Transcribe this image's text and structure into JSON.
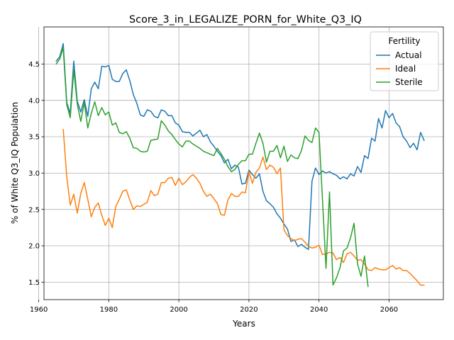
{
  "chart_data": {
    "type": "line",
    "title": "Score_3_in_LEGALIZE_PORN_for_White_Q3_IQ",
    "xlabel": "Years",
    "ylabel": "% of White Q3_IQ Population",
    "xlim": [
      1961.5,
      2075.5
    ],
    "ylim": [
      1.26,
      5.01
    ],
    "xticks": [
      1960,
      1980,
      2000,
      2020,
      2040,
      2060
    ],
    "yticks": [
      1.5,
      2.0,
      2.5,
      3.0,
      3.5,
      4.0,
      4.5
    ],
    "xtick_labels": [
      "1960",
      "1980",
      "2000",
      "2020",
      "2040",
      "2060"
    ],
    "ytick_labels": [
      "1.5",
      "2.0",
      "2.5",
      "3.0",
      "3.5",
      "4.0",
      "4.5"
    ],
    "grid": true,
    "legend": {
      "title": "Fertility",
      "position": "top-right"
    },
    "series": [
      {
        "name": "Actual",
        "color": "#1f77b4",
        "x": [
          1965,
          1966,
          1967,
          1968,
          1969,
          1970,
          1971,
          1972,
          1973,
          1974,
          1975,
          1976,
          1977,
          1978,
          1979,
          1980,
          1981,
          1982,
          1983,
          1984,
          1985,
          1986,
          1987,
          1988,
          1989,
          1990,
          1991,
          1992,
          1993,
          1994,
          1995,
          1996,
          1997,
          1998,
          1999,
          2000,
          2001,
          2002,
          2003,
          2004,
          2005,
          2006,
          2007,
          2008,
          2009,
          2010,
          2011,
          2012,
          2013,
          2014,
          2015,
          2016,
          2017,
          2018,
          2019,
          2020,
          2021,
          2022,
          2023,
          2024,
          2025,
          2026,
          2027,
          2028,
          2029,
          2030,
          2031,
          2032,
          2033,
          2034,
          2035,
          2036,
          2037,
          2038,
          2039,
          2040,
          2041,
          2042,
          2043,
          2044,
          2045,
          2046,
          2047,
          2048,
          2049,
          2050,
          2051,
          2052,
          2053,
          2054,
          2055,
          2056,
          2057,
          2058,
          2059,
          2060,
          2061,
          2062,
          2063,
          2064,
          2065,
          2066,
          2067,
          2068,
          2069,
          2070
        ],
        "values": [
          4.54,
          4.6,
          4.78,
          3.97,
          3.82,
          4.54,
          3.99,
          3.84,
          4.01,
          3.78,
          4.16,
          4.25,
          4.16,
          4.47,
          4.46,
          4.48,
          4.29,
          4.26,
          4.26,
          4.37,
          4.42,
          4.27,
          4.08,
          3.96,
          3.8,
          3.78,
          3.87,
          3.85,
          3.78,
          3.76,
          3.87,
          3.85,
          3.79,
          3.79,
          3.69,
          3.66,
          3.57,
          3.56,
          3.56,
          3.51,
          3.55,
          3.59,
          3.5,
          3.53,
          3.43,
          3.37,
          3.3,
          3.24,
          3.14,
          3.19,
          3.06,
          3.11,
          3.08,
          2.85,
          2.86,
          3.04,
          2.98,
          2.93,
          2.99,
          2.75,
          2.62,
          2.58,
          2.53,
          2.44,
          2.38,
          2.3,
          2.23,
          2.06,
          2.08,
          1.99,
          2.02,
          1.98,
          1.95,
          2.89,
          3.07,
          2.98,
          3.03,
          3.0,
          3.02,
          2.99,
          2.97,
          2.92,
          2.95,
          2.92,
          2.99,
          2.96,
          3.09,
          3.01,
          3.24,
          3.2,
          3.48,
          3.44,
          3.75,
          3.62,
          3.86,
          3.76,
          3.82,
          3.69,
          3.64,
          3.5,
          3.44,
          3.35,
          3.41,
          3.32,
          3.56,
          3.45
        ]
      },
      {
        "name": "Ideal",
        "color": "#ff7f0e",
        "x": [
          1967,
          1968,
          1969,
          1970,
          1971,
          1972,
          1973,
          1974,
          1975,
          1976,
          1977,
          1978,
          1979,
          1980,
          1981,
          1982,
          1983,
          1984,
          1985,
          1986,
          1987,
          1988,
          1989,
          1990,
          1991,
          1992,
          1993,
          1994,
          1995,
          1996,
          1997,
          1998,
          1999,
          2000,
          2001,
          2002,
          2003,
          2004,
          2005,
          2006,
          2007,
          2008,
          2009,
          2010,
          2011,
          2012,
          2013,
          2014,
          2015,
          2016,
          2017,
          2018,
          2019,
          2020,
          2021,
          2022,
          2023,
          2024,
          2025,
          2026,
          2027,
          2028,
          2029,
          2030,
          2031,
          2032,
          2033,
          2034,
          2035,
          2036,
          2037,
          2038,
          2039,
          2040,
          2041,
          2042,
          2043,
          2044,
          2045,
          2046,
          2047,
          2048,
          2049,
          2050,
          2051,
          2052,
          2053,
          2054,
          2055,
          2056,
          2057,
          2058,
          2059,
          2060,
          2061,
          2062,
          2063,
          2064,
          2065,
          2066,
          2067,
          2068,
          2069,
          2070
        ],
        "values": [
          3.6,
          2.95,
          2.56,
          2.71,
          2.45,
          2.72,
          2.87,
          2.64,
          2.4,
          2.53,
          2.59,
          2.42,
          2.28,
          2.38,
          2.25,
          2.54,
          2.64,
          2.75,
          2.77,
          2.63,
          2.5,
          2.55,
          2.54,
          2.57,
          2.6,
          2.76,
          2.69,
          2.71,
          2.87,
          2.87,
          2.93,
          2.94,
          2.83,
          2.93,
          2.84,
          2.88,
          2.94,
          2.98,
          2.93,
          2.86,
          2.75,
          2.68,
          2.71,
          2.65,
          2.58,
          2.43,
          2.42,
          2.63,
          2.72,
          2.68,
          2.68,
          2.74,
          2.73,
          3.02,
          2.86,
          3.01,
          3.07,
          3.22,
          3.05,
          3.11,
          3.08,
          2.99,
          3.07,
          2.22,
          2.14,
          2.1,
          2.07,
          2.09,
          2.1,
          2.05,
          1.99,
          1.97,
          1.98,
          2.01,
          1.88,
          1.89,
          1.91,
          1.9,
          1.81,
          1.84,
          1.77,
          1.89,
          1.91,
          1.86,
          1.8,
          1.81,
          1.75,
          1.67,
          1.66,
          1.7,
          1.68,
          1.67,
          1.67,
          1.7,
          1.73,
          1.68,
          1.7,
          1.66,
          1.66,
          1.62,
          1.57,
          1.52,
          1.46,
          1.46
        ]
      },
      {
        "name": "Sterile",
        "color": "#2ca02c",
        "x": [
          1965,
          1966,
          1967,
          1968,
          1969,
          1970,
          1971,
          1972,
          1973,
          1974,
          1975,
          1976,
          1977,
          1978,
          1979,
          1980,
          1981,
          1982,
          1983,
          1984,
          1985,
          1986,
          1987,
          1988,
          1989,
          1990,
          1991,
          1992,
          1993,
          1994,
          1995,
          1996,
          1997,
          1998,
          1999,
          2000,
          2001,
          2002,
          2003,
          2004,
          2005,
          2006,
          2007,
          2008,
          2009,
          2010,
          2011,
          2012,
          2013,
          2014,
          2015,
          2016,
          2017,
          2018,
          2019,
          2020,
          2021,
          2022,
          2023,
          2024,
          2025,
          2026,
          2027,
          2028,
          2029,
          2030,
          2031,
          2032,
          2033,
          2034,
          2035,
          2036,
          2037,
          2038,
          2039,
          2040,
          2041,
          2042,
          2043,
          2044,
          2045,
          2046,
          2047,
          2048,
          2049,
          2050,
          2051,
          2052,
          2053,
          2054
        ],
        "values": [
          4.5,
          4.57,
          4.72,
          3.94,
          3.76,
          4.42,
          3.95,
          3.71,
          3.97,
          3.62,
          3.82,
          3.98,
          3.79,
          3.9,
          3.8,
          3.84,
          3.66,
          3.69,
          3.56,
          3.54,
          3.57,
          3.48,
          3.35,
          3.34,
          3.3,
          3.29,
          3.3,
          3.45,
          3.46,
          3.47,
          3.72,
          3.66,
          3.58,
          3.53,
          3.46,
          3.4,
          3.36,
          3.44,
          3.44,
          3.4,
          3.37,
          3.34,
          3.3,
          3.28,
          3.26,
          3.24,
          3.34,
          3.27,
          3.19,
          3.09,
          3.02,
          3.05,
          3.12,
          3.17,
          3.17,
          3.26,
          3.26,
          3.41,
          3.55,
          3.41,
          3.15,
          3.3,
          3.3,
          3.38,
          3.21,
          3.37,
          3.16,
          3.25,
          3.21,
          3.2,
          3.31,
          3.51,
          3.45,
          3.42,
          3.62,
          3.56,
          2.63,
          1.69,
          2.74,
          1.46,
          1.56,
          1.7,
          1.93,
          1.97,
          2.11,
          2.31,
          1.75,
          1.58,
          1.86,
          1.44
        ]
      }
    ]
  }
}
